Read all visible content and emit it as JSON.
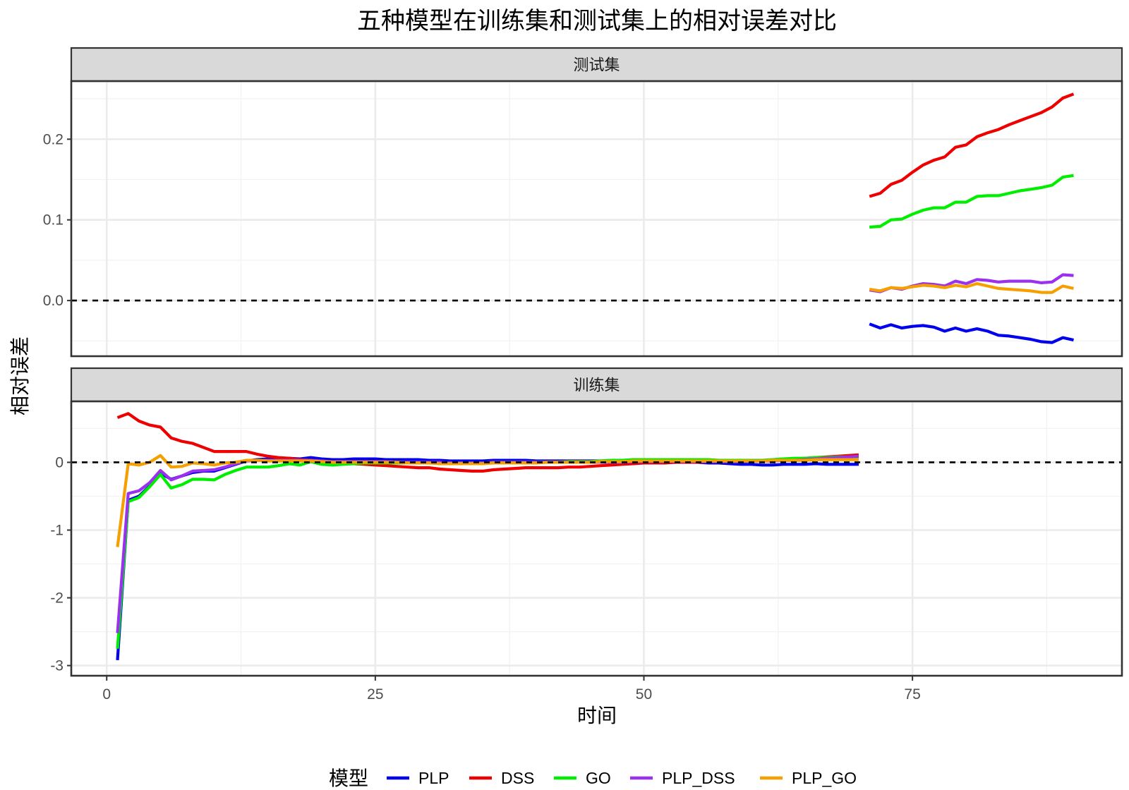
{
  "chart_data": {
    "type": "line",
    "title": "五种模型在训练集和测试集上的相对误差对比",
    "xlabel": "时间",
    "ylabel": "相对误差",
    "xlim": [
      -3.3,
      94.5
    ],
    "x_ticks": [
      0,
      25,
      50,
      75
    ],
    "legend": {
      "title": "模型",
      "position": "bottom"
    },
    "colors": {
      "PLP": "#0000ee",
      "DSS": "#ee0000",
      "GO": "#00ee00",
      "PLP_DSS": "#9b30ee",
      "PLP_GO": "#f5a000"
    },
    "reference_line": {
      "y": 0,
      "style": "dashed"
    },
    "panels": [
      {
        "strip": "测试集",
        "ylim": [
          -0.069,
          0.272
        ],
        "y_ticks": [
          0.0,
          0.1,
          0.2
        ],
        "y_tick_labels": [
          "0.0",
          "0.1",
          "0.2"
        ],
        "x": [
          71,
          72,
          73,
          74,
          75,
          76,
          77,
          78,
          79,
          80,
          81,
          82,
          83,
          84,
          85,
          86,
          87,
          88,
          89,
          90
        ],
        "series": [
          {
            "name": "DSS",
            "values": [
              0.129,
              0.133,
              0.144,
              0.149,
              0.159,
              0.168,
              0.174,
              0.178,
              0.19,
              0.193,
              0.203,
              0.208,
              0.212,
              0.218,
              0.223,
              0.228,
              0.233,
              0.24,
              0.251,
              0.256
            ]
          },
          {
            "name": "GO",
            "values": [
              0.091,
              0.092,
              0.1,
              0.101,
              0.107,
              0.112,
              0.115,
              0.115,
              0.122,
              0.122,
              0.129,
              0.13,
              0.13,
              0.133,
              0.136,
              0.138,
              0.14,
              0.143,
              0.153,
              0.155
            ]
          },
          {
            "name": "PLP_DSS",
            "values": [
              0.013,
              0.011,
              0.016,
              0.014,
              0.018,
              0.021,
              0.02,
              0.018,
              0.024,
              0.021,
              0.026,
              0.025,
              0.023,
              0.024,
              0.024,
              0.024,
              0.022,
              0.023,
              0.032,
              0.031
            ]
          },
          {
            "name": "PLP_GO",
            "values": [
              0.014,
              0.012,
              0.016,
              0.015,
              0.017,
              0.019,
              0.018,
              0.016,
              0.019,
              0.017,
              0.021,
              0.018,
              0.015,
              0.014,
              0.013,
              0.012,
              0.01,
              0.01,
              0.018,
              0.015
            ]
          },
          {
            "name": "PLP",
            "values": [
              -0.029,
              -0.034,
              -0.03,
              -0.034,
              -0.032,
              -0.031,
              -0.033,
              -0.038,
              -0.034,
              -0.038,
              -0.035,
              -0.038,
              -0.043,
              -0.044,
              -0.046,
              -0.048,
              -0.051,
              -0.052,
              -0.046,
              -0.049
            ]
          }
        ]
      },
      {
        "strip": "训练集",
        "ylim": [
          -3.15,
          0.9
        ],
        "y_ticks": [
          0,
          -1,
          -2,
          -3
        ],
        "y_tick_labels": [
          "0",
          "-1",
          "-2",
          "-3"
        ],
        "x": [
          1,
          2,
          3,
          4,
          5,
          6,
          7,
          8,
          9,
          10,
          11,
          12,
          13,
          14,
          15,
          16,
          17,
          18,
          19,
          20,
          21,
          22,
          23,
          24,
          25,
          26,
          27,
          28,
          29,
          30,
          31,
          32,
          33,
          34,
          35,
          36,
          37,
          38,
          39,
          40,
          41,
          42,
          43,
          44,
          45,
          46,
          47,
          48,
          49,
          50,
          51,
          52,
          53,
          54,
          55,
          56,
          57,
          58,
          59,
          60,
          61,
          62,
          63,
          64,
          65,
          66,
          67,
          68,
          69,
          70
        ],
        "series": [
          {
            "name": "PLP",
            "values": [
              -2.92,
              -0.56,
              -0.5,
              -0.35,
              -0.16,
              -0.25,
              -0.2,
              -0.15,
              -0.13,
              -0.13,
              -0.08,
              -0.03,
              0.02,
              0.04,
              0.05,
              0.05,
              0.06,
              0.05,
              0.07,
              0.05,
              0.04,
              0.04,
              0.05,
              0.05,
              0.05,
              0.04,
              0.04,
              0.04,
              0.04,
              0.03,
              0.03,
              0.02,
              0.02,
              0.02,
              0.02,
              0.03,
              0.03,
              0.03,
              0.03,
              0.02,
              0.02,
              0.02,
              0.02,
              0.02,
              0.02,
              0.02,
              0.02,
              0.01,
              0.01,
              0.01,
              0.01,
              0.0,
              0.0,
              0.0,
              0.0,
              -0.01,
              -0.01,
              -0.02,
              -0.03,
              -0.03,
              -0.04,
              -0.04,
              -0.03,
              -0.03,
              -0.03,
              -0.02,
              -0.03,
              -0.03,
              -0.03,
              -0.03
            ]
          },
          {
            "name": "DSS",
            "values": [
              0.66,
              0.72,
              0.61,
              0.55,
              0.52,
              0.36,
              0.31,
              0.28,
              0.22,
              0.16,
              0.16,
              0.16,
              0.16,
              0.12,
              0.09,
              0.07,
              0.06,
              0.04,
              0.03,
              0.01,
              0.0,
              -0.01,
              -0.02,
              -0.03,
              -0.04,
              -0.05,
              -0.06,
              -0.07,
              -0.08,
              -0.08,
              -0.1,
              -0.11,
              -0.12,
              -0.13,
              -0.13,
              -0.11,
              -0.1,
              -0.09,
              -0.08,
              -0.08,
              -0.08,
              -0.08,
              -0.07,
              -0.07,
              -0.06,
              -0.05,
              -0.04,
              -0.03,
              -0.02,
              -0.01,
              -0.01,
              -0.01,
              0.0,
              0.0,
              0.0,
              0.01,
              0.01,
              0.01,
              0.01,
              0.02,
              0.02,
              0.03,
              0.04,
              0.05,
              0.06,
              0.07,
              0.08,
              0.09,
              0.1,
              0.11
            ]
          },
          {
            "name": "GO",
            "values": [
              -2.75,
              -0.58,
              -0.52,
              -0.36,
              -0.18,
              -0.38,
              -0.33,
              -0.25,
              -0.25,
              -0.26,
              -0.18,
              -0.12,
              -0.07,
              -0.07,
              -0.07,
              -0.05,
              -0.02,
              -0.04,
              0.01,
              -0.03,
              -0.04,
              -0.03,
              -0.02,
              -0.01,
              -0.01,
              -0.01,
              -0.01,
              -0.01,
              -0.01,
              -0.01,
              -0.01,
              -0.01,
              -0.01,
              -0.01,
              -0.01,
              0.0,
              0.0,
              0.0,
              0.0,
              0.0,
              0.0,
              0.0,
              0.01,
              0.01,
              0.01,
              0.02,
              0.03,
              0.03,
              0.04,
              0.04,
              0.04,
              0.04,
              0.04,
              0.04,
              0.04,
              0.04,
              0.03,
              0.03,
              0.03,
              0.03,
              0.03,
              0.04,
              0.05,
              0.06,
              0.06,
              0.07,
              0.07,
              0.08,
              0.08,
              0.08
            ]
          },
          {
            "name": "PLP_DSS",
            "values": [
              -2.52,
              -0.46,
              -0.42,
              -0.3,
              -0.12,
              -0.26,
              -0.2,
              -0.13,
              -0.12,
              -0.11,
              -0.07,
              -0.02,
              0.02,
              0.03,
              0.03,
              0.03,
              0.03,
              0.03,
              0.03,
              0.02,
              0.01,
              0.01,
              0.01,
              0.01,
              0.01,
              0.01,
              0.0,
              0.0,
              0.0,
              0.0,
              0.0,
              -0.01,
              -0.01,
              -0.01,
              -0.01,
              0.0,
              0.0,
              0.0,
              0.0,
              0.0,
              0.0,
              0.0,
              0.0,
              0.0,
              0.0,
              0.0,
              0.0,
              0.0,
              0.01,
              0.01,
              0.01,
              0.01,
              0.01,
              0.01,
              0.01,
              0.01,
              0.01,
              0.01,
              0.01,
              0.02,
              0.02,
              0.02,
              0.03,
              0.03,
              0.04,
              0.05,
              0.06,
              0.07,
              0.08,
              0.09
            ]
          },
          {
            "name": "PLP_GO",
            "values": [
              -1.25,
              -0.02,
              -0.04,
              0.0,
              0.1,
              -0.07,
              -0.06,
              -0.01,
              -0.02,
              -0.04,
              -0.01,
              0.0,
              0.03,
              0.03,
              0.02,
              0.02,
              0.02,
              0.02,
              0.02,
              0.01,
              0.0,
              0.0,
              0.0,
              0.0,
              0.0,
              0.0,
              0.0,
              -0.01,
              -0.01,
              -0.01,
              -0.02,
              -0.02,
              -0.02,
              -0.02,
              -0.02,
              -0.01,
              -0.01,
              -0.01,
              -0.01,
              -0.01,
              0.0,
              0.0,
              0.0,
              0.0,
              0.0,
              0.01,
              0.01,
              0.01,
              0.02,
              0.02,
              0.02,
              0.02,
              0.02,
              0.02,
              0.02,
              0.02,
              0.02,
              0.02,
              0.02,
              0.02,
              0.02,
              0.03,
              0.03,
              0.03,
              0.03,
              0.04,
              0.04,
              0.04,
              0.04,
              0.04
            ]
          }
        ]
      }
    ]
  }
}
